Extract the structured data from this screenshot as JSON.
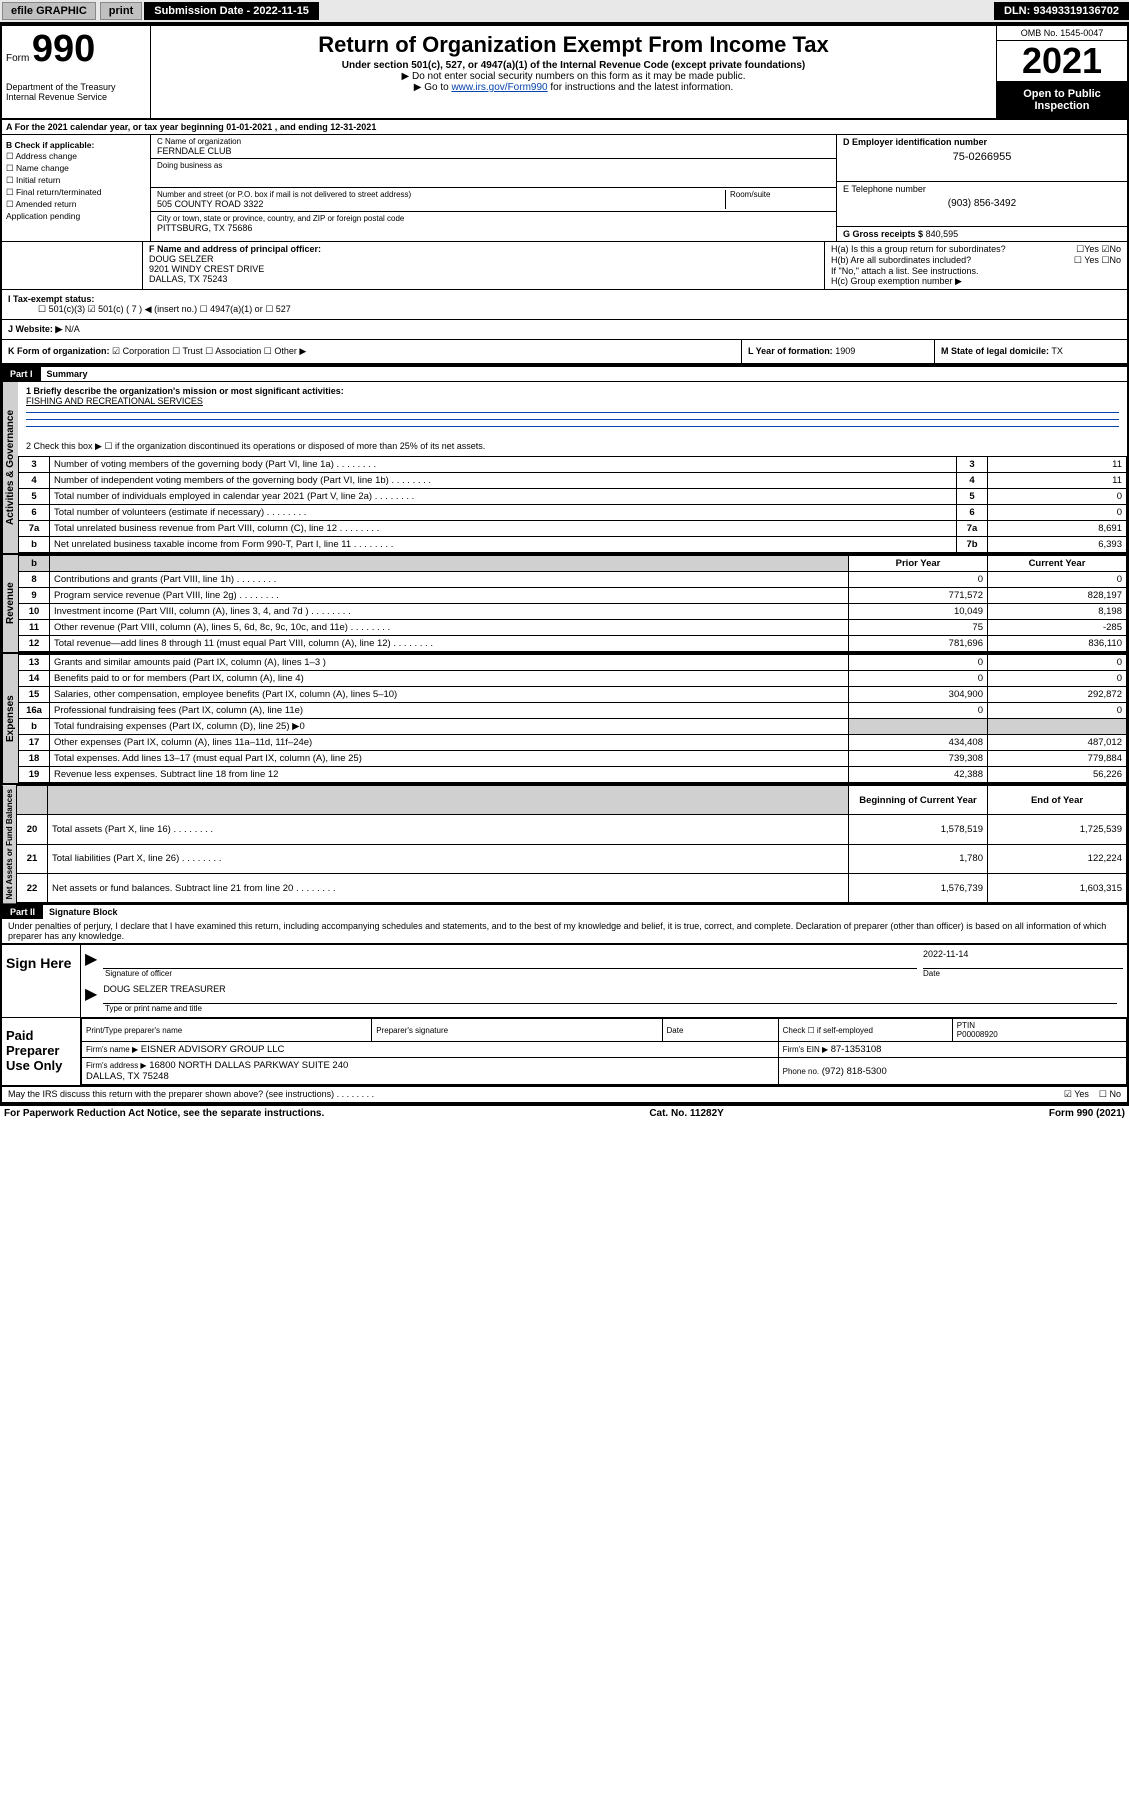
{
  "topbar": {
    "efile": "efile GRAPHIC",
    "print": "print",
    "subm_label": "Submission Date - 2022-11-15",
    "dln": "DLN: 93493319136702"
  },
  "header": {
    "form_prefix": "Form",
    "form_number": "990",
    "dept": "Department of the Treasury",
    "irs": "Internal Revenue Service",
    "title": "Return of Organization Exempt From Income Tax",
    "sub": "Under section 501(c), 527, or 4947(a)(1) of the Internal Revenue Code (except private foundations)",
    "note1": "▶ Do not enter social security numbers on this form as it may be made public.",
    "note2_pre": "▶ Go to ",
    "note2_link": "www.irs.gov/Form990",
    "note2_post": " for instructions and the latest information.",
    "omb": "OMB No. 1545-0047",
    "year": "2021",
    "open": "Open to Public Inspection"
  },
  "period": {
    "text": "A For the 2021 calendar year, or tax year beginning 01-01-2021   , and ending 12-31-2021"
  },
  "boxB": {
    "label": "B Check if applicable:",
    "items": [
      "☐ Address change",
      "☐ Name change",
      "☐ Initial return",
      "☐ Final return/terminated",
      "☐ Amended return",
      "  Application pending"
    ]
  },
  "boxC": {
    "label": "C Name of organization",
    "name": "FERNDALE CLUB",
    "dba_label": "Doing business as",
    "addr_label": "Number and street (or P.O. box if mail is not delivered to street address)",
    "room_label": "Room/suite",
    "addr": "505 COUNTY ROAD 3322",
    "city_label": "City or town, state or province, country, and ZIP or foreign postal code",
    "city": "PITTSBURG, TX  75686"
  },
  "boxD": {
    "label": "D Employer identification number",
    "ein": "75-0266955"
  },
  "boxE": {
    "label": "E Telephone number",
    "phone": "(903) 856-3492"
  },
  "boxG": {
    "label": "G Gross receipts $",
    "value": "840,595"
  },
  "boxF": {
    "label": "F Name and address of principal officer:",
    "name": "DOUG SELZER",
    "addr1": "9201 WINDY CREST DRIVE",
    "addr2": "DALLAS, TX  75243"
  },
  "boxH": {
    "ha": "H(a)  Is this a group return for subordinates?",
    "ha_yes": "☐Yes",
    "ha_no": "☑No",
    "hb": "H(b)  Are all subordinates included?",
    "hb_yes": "☐ Yes",
    "hb_no": "☐No",
    "hb_note": "If \"No,\" attach a list. See instructions.",
    "hc": "H(c)  Group exemption number ▶"
  },
  "boxI": {
    "label": "I   Tax-exempt status:",
    "opts": "☐ 501(c)(3)   ☑  501(c) ( 7 ) ◀ (insert no.)   ☐ 4947(a)(1) or  ☐ 527"
  },
  "boxJ": {
    "label": "J   Website: ▶",
    "value": "N/A"
  },
  "boxK": {
    "label": "K Form of organization:",
    "opts": " ☑ Corporation  ☐ Trust  ☐ Association  ☐ Other ▶"
  },
  "boxL": {
    "label": "L Year of formation:",
    "value": "1909"
  },
  "boxM": {
    "label": "M State of legal domicile:",
    "value": "TX"
  },
  "partI": {
    "header": "Part I",
    "title": "Summary",
    "q1": "1   Briefly describe the organization's mission or most significant activities:",
    "mission": "FISHING AND RECREATIONAL SERVICES",
    "q2": "2   Check this box ▶ ☐  if the organization discontinued its operations or disposed of more than 25% of its net assets."
  },
  "gov_rows": [
    {
      "no": "3",
      "text": "Number of voting members of the governing body (Part VI, line 1a)",
      "box": "3",
      "val": "11"
    },
    {
      "no": "4",
      "text": "Number of independent voting members of the governing body (Part VI, line 1b)",
      "box": "4",
      "val": "11"
    },
    {
      "no": "5",
      "text": "Total number of individuals employed in calendar year 2021 (Part V, line 2a)",
      "box": "5",
      "val": "0"
    },
    {
      "no": "6",
      "text": "Total number of volunteers (estimate if necessary)",
      "box": "6",
      "val": "0"
    },
    {
      "no": "7a",
      "text": "Total unrelated business revenue from Part VIII, column (C), line 12",
      "box": "7a",
      "val": "8,691"
    },
    {
      "no": "b",
      "text": "Net unrelated business taxable income from Form 990-T, Part I, line 11",
      "box": "7b",
      "val": "6,393"
    }
  ],
  "two_col_header": {
    "prior": "Prior Year",
    "current": "Current Year"
  },
  "revenue_rows": [
    {
      "no": "8",
      "text": "Contributions and grants (Part VIII, line 1h)",
      "prior": "0",
      "cur": "0"
    },
    {
      "no": "9",
      "text": "Program service revenue (Part VIII, line 2g)",
      "prior": "771,572",
      "cur": "828,197"
    },
    {
      "no": "10",
      "text": "Investment income (Part VIII, column (A), lines 3, 4, and 7d )",
      "prior": "10,049",
      "cur": "8,198"
    },
    {
      "no": "11",
      "text": "Other revenue (Part VIII, column (A), lines 5, 6d, 8c, 9c, 10c, and 11e)",
      "prior": "75",
      "cur": "-285"
    },
    {
      "no": "12",
      "text": "Total revenue—add lines 8 through 11 (must equal Part VIII, column (A), line 12)",
      "prior": "781,696",
      "cur": "836,110"
    }
  ],
  "expense_rows": [
    {
      "no": "13",
      "text": "Grants and similar amounts paid (Part IX, column (A), lines 1–3 )",
      "prior": "0",
      "cur": "0"
    },
    {
      "no": "14",
      "text": "Benefits paid to or for members (Part IX, column (A), line 4)",
      "prior": "0",
      "cur": "0"
    },
    {
      "no": "15",
      "text": "Salaries, other compensation, employee benefits (Part IX, column (A), lines 5–10)",
      "prior": "304,900",
      "cur": "292,872"
    },
    {
      "no": "16a",
      "text": "Professional fundraising fees (Part IX, column (A), line 11e)",
      "prior": "0",
      "cur": "0"
    },
    {
      "no": "b",
      "text": "Total fundraising expenses (Part IX, column (D), line 25) ▶0",
      "prior": "",
      "cur": "",
      "shaded": true
    },
    {
      "no": "17",
      "text": "Other expenses (Part IX, column (A), lines 11a–11d, 11f–24e)",
      "prior": "434,408",
      "cur": "487,012"
    },
    {
      "no": "18",
      "text": "Total expenses. Add lines 13–17 (must equal Part IX, column (A), line 25)",
      "prior": "739,308",
      "cur": "779,884"
    },
    {
      "no": "19",
      "text": "Revenue less expenses. Subtract line 18 from line 12",
      "prior": "42,388",
      "cur": "56,226"
    }
  ],
  "net_header": {
    "begin": "Beginning of Current Year",
    "end": "End of Year"
  },
  "net_rows": [
    {
      "no": "20",
      "text": "Total assets (Part X, line 16)",
      "prior": "1,578,519",
      "cur": "1,725,539"
    },
    {
      "no": "21",
      "text": "Total liabilities (Part X, line 26)",
      "prior": "1,780",
      "cur": "122,224"
    },
    {
      "no": "22",
      "text": "Net assets or fund balances. Subtract line 21 from line 20",
      "prior": "1,576,739",
      "cur": "1,603,315"
    }
  ],
  "partII": {
    "header": "Part II",
    "title": "Signature Block",
    "decl": "Under penalties of perjury, I declare that I have examined this return, including accompanying schedules and statements, and to the best of my knowledge and belief, it is true, correct, and complete. Declaration of preparer (other than officer) is based on all information of which preparer has any knowledge."
  },
  "sign": {
    "here": "Sign Here",
    "sig_label": "Signature of officer",
    "date_label": "Date",
    "date": "2022-11-14",
    "name": "DOUG SELZER  TREASURER",
    "name_label": "Type or print name and title"
  },
  "paid": {
    "label": "Paid Preparer Use Only",
    "col1": "Print/Type preparer's name",
    "col2": "Preparer's signature",
    "col3": "Date",
    "col4a": "Check ☐ if self-employed",
    "col4b_label": "PTIN",
    "col4b": "P00008920",
    "firm_name_label": "Firm's name   ▶",
    "firm_name": "EISNER ADVISORY GROUP LLC",
    "firm_ein_label": "Firm's EIN ▶",
    "firm_ein": "87-1353108",
    "firm_addr_label": "Firm's address ▶",
    "firm_addr": "16800 NORTH DALLAS PARKWAY SUITE 240\nDALLAS, TX  75248",
    "phone_label": "Phone no.",
    "phone": "(972) 818-5300"
  },
  "may_discuss": {
    "text": "May the IRS discuss this return with the preparer shown above? (see instructions)",
    "yes": "☑ Yes",
    "no": "☐ No"
  },
  "footer": {
    "left": "For Paperwork Reduction Act Notice, see the separate instructions.",
    "mid": "Cat. No. 11282Y",
    "right": "Form 990 (2021)"
  },
  "sidebar_labels": {
    "gov": "Activities & Governance",
    "rev": "Revenue",
    "exp": "Expenses",
    "net": "Net Assets or Fund Balances"
  },
  "colors": {
    "black": "#000000",
    "link": "#0645ad",
    "shade": "#d0d0d0",
    "topbar": "#e8e8e8"
  }
}
